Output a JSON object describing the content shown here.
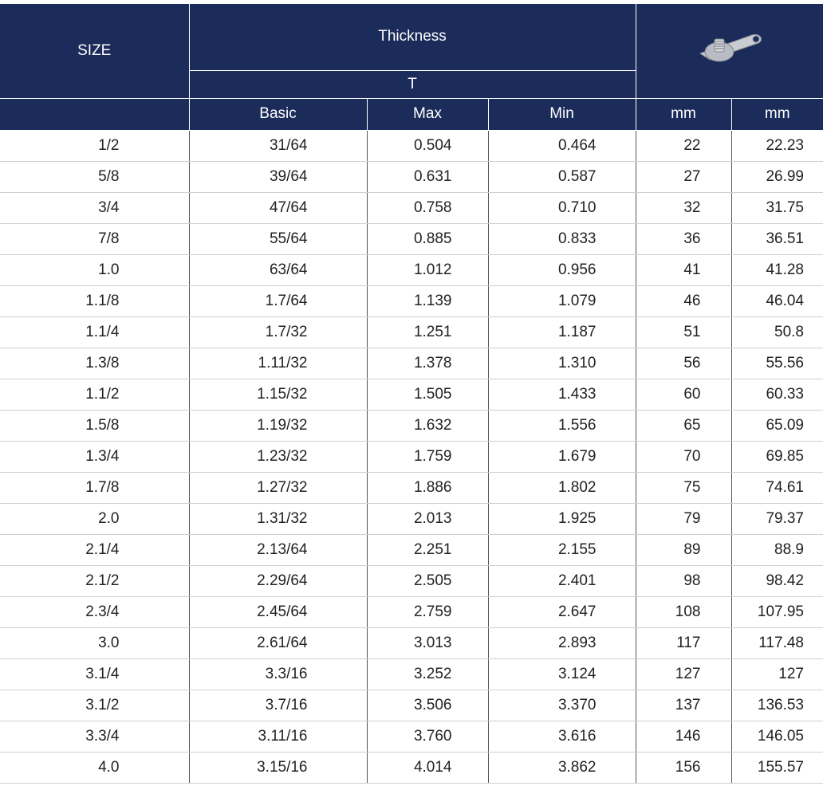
{
  "header": {
    "size": "SIZE",
    "thickness": "Thickness",
    "t": "T",
    "subheaders": [
      "Basic",
      "Max",
      "Min",
      "mm",
      "mm"
    ]
  },
  "rows": [
    [
      "1/2",
      "31/64",
      "0.504",
      "0.464",
      "22",
      "22.23"
    ],
    [
      "5/8",
      "39/64",
      "0.631",
      "0.587",
      "27",
      "26.99"
    ],
    [
      "3/4",
      "47/64",
      "0.758",
      "0.710",
      "32",
      "31.75"
    ],
    [
      "7/8",
      "55/64",
      "0.885",
      "0.833",
      "36",
      "36.51"
    ],
    [
      "1.0",
      "63/64",
      "1.012",
      "0.956",
      "41",
      "41.28"
    ],
    [
      "1.1/8",
      "1.7/64",
      "1.139",
      "1.079",
      "46",
      "46.04"
    ],
    [
      "1.1/4",
      "1.7/32",
      "1.251",
      "1.187",
      "51",
      "50.8"
    ],
    [
      "1.3/8",
      "1.11/32",
      "1.378",
      "1.310",
      "56",
      "55.56"
    ],
    [
      "1.1/2",
      "1.15/32",
      "1.505",
      "1.433",
      "60",
      "60.33"
    ],
    [
      "1.5/8",
      "1.19/32",
      "1.632",
      "1.556",
      "65",
      "65.09"
    ],
    [
      "1.3/4",
      "1.23/32",
      "1.759",
      "1.679",
      "70",
      "69.85"
    ],
    [
      "1.7/8",
      "1.27/32",
      "1.886",
      "1.802",
      "75",
      "74.61"
    ],
    [
      "2.0",
      "1.31/32",
      "2.013",
      "1.925",
      "79",
      "79.37"
    ],
    [
      "2.1/4",
      "2.13/64",
      "2.251",
      "2.155",
      "89",
      "88.9"
    ],
    [
      "2.1/2",
      "2.29/64",
      "2.505",
      "2.401",
      "98",
      "98.42"
    ],
    [
      "2.3/4",
      "2.45/64",
      "2.759",
      "2.647",
      "108",
      "107.95"
    ],
    [
      "3.0",
      "2.61/64",
      "3.013",
      "2.893",
      "117",
      "117.48"
    ],
    [
      "3.1/4",
      "3.3/16",
      "3.252",
      "3.124",
      "127",
      "127"
    ],
    [
      "3.1/2",
      "3.7/16",
      "3.506",
      "3.370",
      "137",
      "136.53"
    ],
    [
      "3.3/4",
      "3.11/16",
      "3.760",
      "3.616",
      "146",
      "146.05"
    ],
    [
      "4.0",
      "3.15/16",
      "4.014",
      "3.862",
      "156",
      "155.57"
    ]
  ]
}
